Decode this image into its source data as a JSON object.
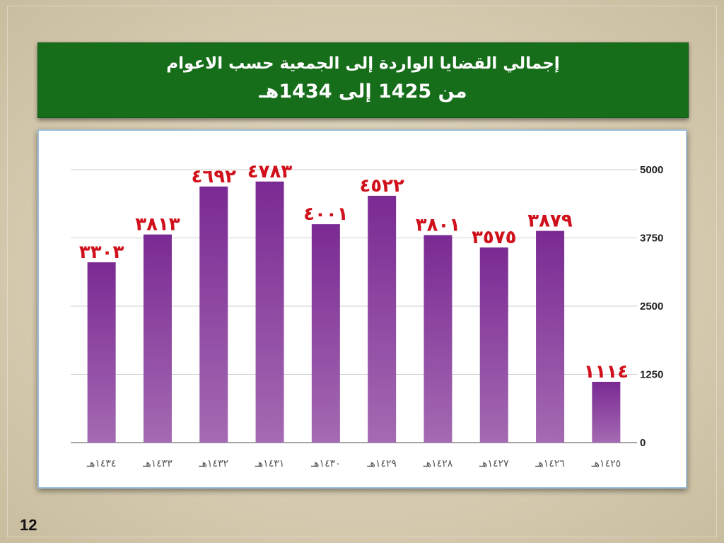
{
  "title": {
    "line1": "إجمالي القضايا الواردة إلى الجمعية حسب الاعوام",
    "line2": "من 1425 إلى 1434هـ"
  },
  "slide_number": "12",
  "colors": {
    "banner": "#166d1a",
    "bar_top": "#7a2a93",
    "bar_bottom": "#a46ab2",
    "value_label": "#d0101a",
    "gridline": "#cfcfcf",
    "axis_text": "#222222"
  },
  "chart_data": {
    "type": "bar",
    "categories": [
      "١٤٣٤هـ",
      "١٤٣٣هـ",
      "١٤٣٢هـ",
      "١٤٣١هـ",
      "١٤٣٠هـ",
      "١٤٢٩هـ",
      "١٤٢٨هـ",
      "١٤٢٧هـ",
      "١٤٢٦هـ",
      "١٤٢٥هـ"
    ],
    "values": [
      3303,
      3813,
      4692,
      4783,
      4001,
      4522,
      3801,
      3575,
      3879,
      1114
    ],
    "value_labels": [
      "٣٣٠٣",
      "٣٨١٣",
      "٤٦٩٢",
      "٤٧٨٣",
      "٤٠٠١",
      "٤٥٢٢",
      "٣٨٠١",
      "٣٥٧٥",
      "٣٨٧٩",
      "١١١٤"
    ],
    "y_ticks": [
      0,
      1250,
      2500,
      3750,
      5000
    ],
    "y_tick_labels": [
      "0",
      "1250",
      "2500",
      "3750",
      "5000"
    ],
    "ylim": [
      0,
      5000
    ],
    "y_axis_position": "right",
    "grid": true,
    "legend": "none"
  }
}
